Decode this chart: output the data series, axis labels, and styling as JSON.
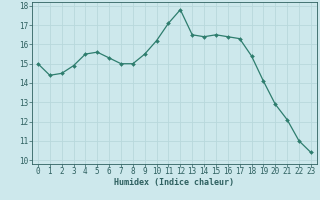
{
  "x": [
    0,
    1,
    2,
    3,
    4,
    5,
    6,
    7,
    8,
    9,
    10,
    11,
    12,
    13,
    14,
    15,
    16,
    17,
    18,
    19,
    20,
    21,
    22,
    23
  ],
  "y": [
    15.0,
    14.4,
    14.5,
    14.9,
    15.5,
    15.6,
    15.3,
    15.0,
    15.0,
    15.5,
    16.2,
    17.1,
    17.8,
    16.5,
    16.4,
    16.5,
    16.4,
    16.3,
    15.4,
    14.1,
    12.9,
    12.1,
    11.0,
    10.4
  ],
  "xlabel": "Humidex (Indice chaleur)",
  "xlim": [
    -0.5,
    23.5
  ],
  "ylim": [
    9.8,
    18.2
  ],
  "yticks": [
    10,
    11,
    12,
    13,
    14,
    15,
    16,
    17,
    18
  ],
  "xticks": [
    0,
    1,
    2,
    3,
    4,
    5,
    6,
    7,
    8,
    9,
    10,
    11,
    12,
    13,
    14,
    15,
    16,
    17,
    18,
    19,
    20,
    21,
    22,
    23
  ],
  "line_color": "#2e7d6e",
  "marker_color": "#2e7d6e",
  "bg_color": "#cde8ec",
  "grid_color": "#b8d8dc",
  "font_color": "#2e6060",
  "xlabel_fontsize": 6.0,
  "tick_fontsize": 5.5
}
